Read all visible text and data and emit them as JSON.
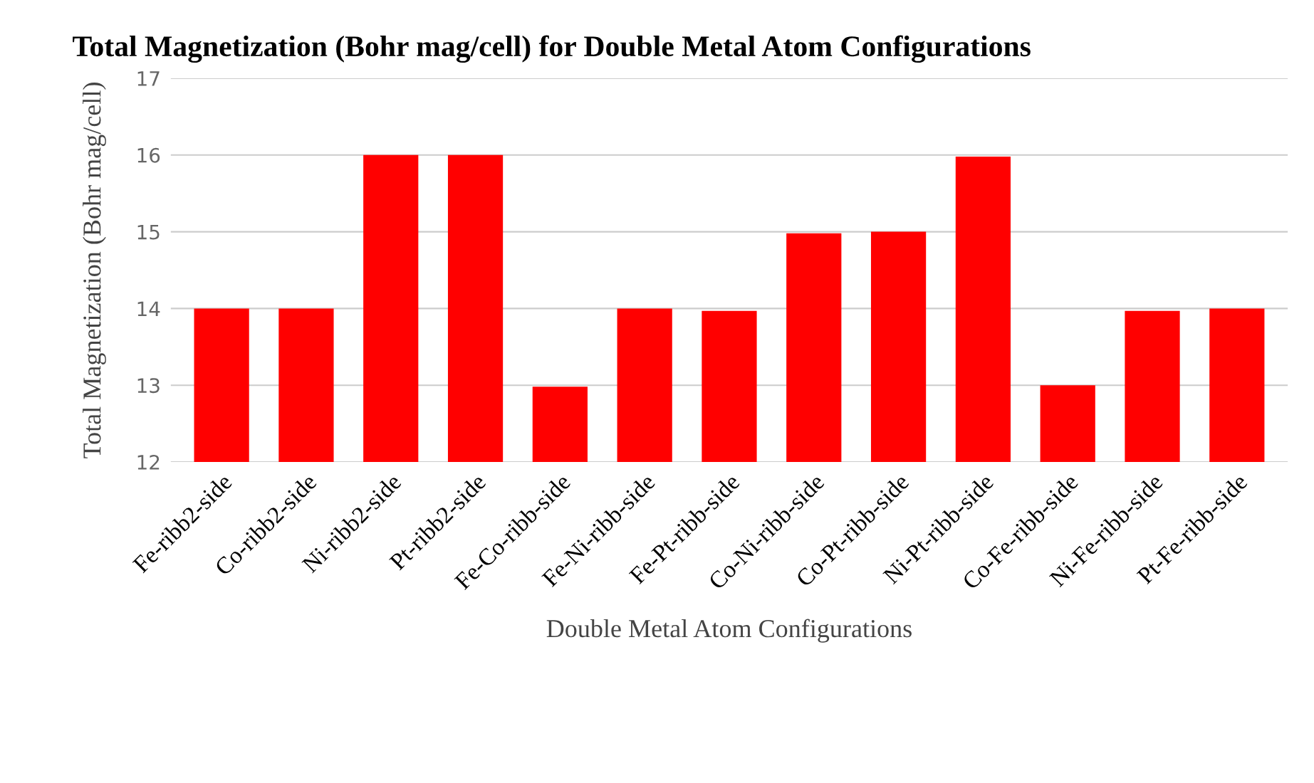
{
  "chart_data": {
    "type": "bar",
    "title": "Total Magnetization (Bohr mag/cell) for Double Metal Atom Configurations",
    "xlabel": "Double Metal Atom Configurations",
    "ylabel": "Total Magnetization (Bohr mag/cell)",
    "categories": [
      "Fe-ribb2-side",
      "Co-ribb2-side",
      "Ni-ribb2-side",
      "Pt-ribb2-side",
      "Fe-Co-ribb-side",
      "Fe-Ni-ribb-side",
      "Fe-Pt-ribb-side",
      "Co-Ni-ribb-side",
      "Co-Pt-ribb-side",
      "Ni-Pt-ribb-side",
      "Co-Fe-ribb-side",
      "Ni-Fe-ribb-side",
      "Pt-Fe-ribb-side"
    ],
    "values": [
      14,
      14,
      16,
      16,
      12.98,
      14,
      13.97,
      14.98,
      15,
      15.98,
      13,
      13.97,
      14
    ],
    "color": "#ff0000",
    "ylim": [
      12,
      17
    ],
    "yticks": [
      12,
      13,
      14,
      15,
      16,
      17
    ],
    "grid": "y",
    "legend": false
  }
}
